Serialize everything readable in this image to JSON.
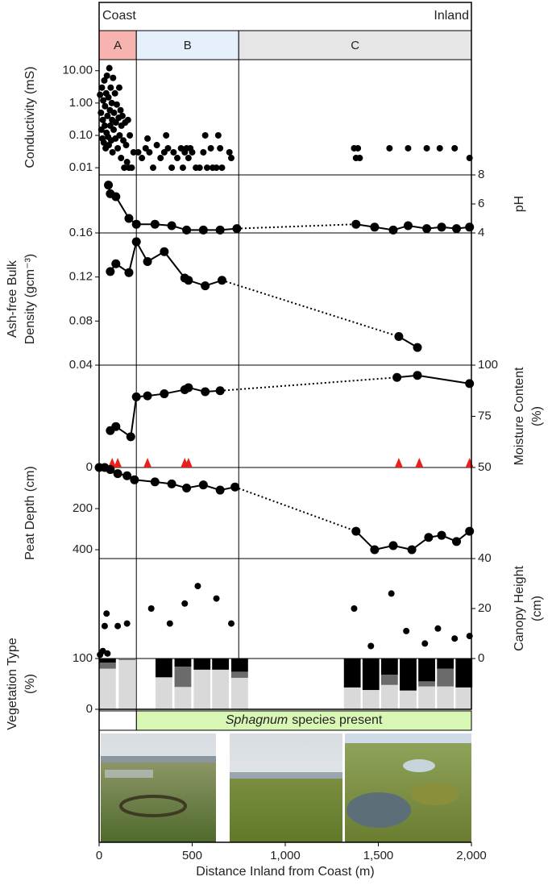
{
  "header": {
    "left": "Coast",
    "right": "Inland"
  },
  "zones": [
    {
      "label": "A",
      "range": [
        0,
        200
      ],
      "color": "#f6b3b0"
    },
    {
      "label": "B",
      "range": [
        200,
        750
      ],
      "color": "#e6f0fd"
    },
    {
      "label": "C",
      "range": [
        750,
        2000
      ],
      "color": "#e6e6e6"
    }
  ],
  "x_axis": {
    "label": "Distance Inland from Coast (m)",
    "xlim": [
      0,
      2000
    ],
    "xticks": [
      0,
      500,
      {
        "value": 1000,
        "label": "1,000"
      },
      {
        "value": 1500,
        "label": "1,500"
      },
      {
        "value": 2000,
        "label": "2,000"
      }
    ]
  },
  "chart_data": [
    {
      "type": "scatter",
      "label": [
        "Conductivity (mS)"
      ],
      "axis_side": "left",
      "log": true,
      "color": "#000",
      "ylim": [
        0.006,
        22
      ],
      "yticks": [
        {
          "value": 0.01,
          "label": "0.01"
        },
        {
          "value": 0.1,
          "label": "0.10"
        },
        {
          "value": 1,
          "label": "1.00"
        },
        {
          "value": 10,
          "label": "10.00"
        }
      ],
      "x": [
        5,
        10,
        12,
        15,
        18,
        20,
        22,
        25,
        28,
        30,
        32,
        35,
        38,
        40,
        42,
        45,
        48,
        50,
        52,
        55,
        58,
        60,
        62,
        65,
        68,
        70,
        72,
        75,
        78,
        80,
        85,
        88,
        90,
        95,
        100,
        105,
        108,
        110,
        115,
        118,
        120,
        125,
        130,
        135,
        140,
        145,
        150,
        155,
        160,
        165,
        175,
        185,
        210,
        230,
        250,
        260,
        270,
        290,
        310,
        330,
        350,
        360,
        370,
        390,
        400,
        420,
        440,
        450,
        460,
        470,
        480,
        490,
        500,
        520,
        540,
        560,
        570,
        580,
        600,
        610,
        630,
        640,
        650,
        660,
        700,
        710,
        1370,
        1380,
        1390,
        1400,
        1560,
        1660,
        1760,
        1830,
        1910,
        1990
      ],
      "values": [
        1.8,
        0.5,
        0.15,
        3,
        0.08,
        0.3,
        1.2,
        0.06,
        5,
        0.2,
        0.8,
        0.04,
        2,
        0.12,
        7,
        0.4,
        0.09,
        1.5,
        0.05,
        12,
        0.6,
        0.2,
        3,
        0.07,
        1,
        0.3,
        0.03,
        6,
        0.15,
        0.5,
        2,
        0.08,
        0.25,
        0.9,
        0.04,
        0.35,
        3,
        0.1,
        0.6,
        0.02,
        0.2,
        0.4,
        0.07,
        0.01,
        0.25,
        0.05,
        0.015,
        0.3,
        0.01,
        0.1,
        0.01,
        0.03,
        0.03,
        0.02,
        0.04,
        0.08,
        0.03,
        0.01,
        0.05,
        0.02,
        0.03,
        0.1,
        0.04,
        0.01,
        0.03,
        0.02,
        0.04,
        0.01,
        0.03,
        0.04,
        0.02,
        0.04,
        0.03,
        0.01,
        0.01,
        0.03,
        0.1,
        0.01,
        0.04,
        0.01,
        0.01,
        0.1,
        0.04,
        0.01,
        0.03,
        0.02,
        0.04,
        0.02,
        0.04,
        0.02,
        0.04,
        0.04,
        0.04,
        0.04,
        0.04,
        0.02
      ]
    },
    {
      "type": "line",
      "label": [
        "pH"
      ],
      "axis_side": "right",
      "color": "#000",
      "ylim": [
        4,
        8
      ],
      "yticks": [
        4,
        6,
        8
      ],
      "x": [
        50,
        60,
        90,
        160,
        200,
        300,
        390,
        470,
        560,
        650,
        740,
        1380,
        1480,
        1580,
        1660,
        1760,
        1840,
        1920,
        1990
      ],
      "values": [
        7.3,
        6.7,
        6.5,
        5.0,
        4.6,
        4.6,
        4.5,
        4.2,
        4.2,
        4.2,
        4.3,
        4.6,
        4.4,
        4.2,
        4.5,
        4.3,
        4.4,
        4.3,
        4.4
      ]
    },
    {
      "type": "line",
      "label": [
        "Ash-free Bulk",
        "Density (gcm⁻³)"
      ],
      "axis_side": "left",
      "color": "#000",
      "ylim": [
        0.04,
        0.16
      ],
      "yticks": [
        {
          "value": 0.04,
          "label": "0.04"
        },
        {
          "value": 0.08,
          "label": "0.08"
        },
        {
          "value": 0.12,
          "label": "0.12"
        },
        {
          "value": 0.16,
          "label": "0.16"
        }
      ],
      "x": [
        60,
        90,
        160,
        200,
        260,
        350,
        460,
        480,
        570,
        660,
        1610,
        1710
      ],
      "values": [
        0.125,
        0.132,
        0.124,
        0.152,
        0.134,
        0.143,
        0.119,
        0.117,
        0.112,
        0.117,
        0.066,
        0.056
      ]
    },
    {
      "type": "line",
      "label": [
        "Moisture Content",
        "(%)"
      ],
      "axis_side": "right",
      "color": "#000",
      "ylim": [
        50,
        100
      ],
      "yticks": [
        50,
        75,
        100
      ],
      "x": [
        60,
        90,
        170,
        200,
        260,
        350,
        460,
        480,
        570,
        650,
        1600,
        1710,
        1990
      ],
      "values": [
        68,
        70,
        65,
        84.5,
        85,
        86,
        88,
        89,
        87,
        87.5,
        94,
        95,
        91
      ],
      "sample_x": [
        70,
        100,
        260,
        460,
        480,
        1610,
        1720,
        1990
      ],
      "sample_color": "#e8211c"
    },
    {
      "type": "line",
      "label": [
        "Peat Depth (cm)"
      ],
      "axis_side": "left",
      "invert": true,
      "color": "#000",
      "ylim": [
        0,
        443
      ],
      "yticks": [
        0,
        200,
        400
      ],
      "x": [
        0,
        30,
        60,
        100,
        150,
        190,
        300,
        390,
        470,
        560,
        650,
        730,
        1380,
        1480,
        1580,
        1680,
        1770,
        1840,
        1920,
        1990
      ],
      "values": [
        0,
        0,
        10,
        30,
        40,
        60,
        70,
        80,
        100,
        85,
        110,
        95,
        310,
        400,
        380,
        400,
        340,
        330,
        360,
        310
      ]
    },
    {
      "type": "scatter",
      "label": [
        "Canopy Height",
        "(cm)"
      ],
      "axis_side": "right",
      "color": "#000",
      "ylim": [
        0,
        40
      ],
      "yticks": [
        0,
        20,
        40
      ],
      "x": [
        5,
        20,
        30,
        40,
        45,
        100,
        150,
        280,
        380,
        460,
        530,
        630,
        710,
        1370,
        1460,
        1570,
        1650,
        1750,
        1820,
        1910,
        1990
      ],
      "values": [
        1.5,
        3,
        13,
        18,
        2,
        13,
        14,
        20,
        14,
        22,
        29,
        24,
        14,
        20,
        5,
        26,
        11,
        6,
        12,
        8,
        9
      ]
    },
    {
      "type": "stacked_bar",
      "label": [
        "Vegetation Type",
        "(%)"
      ],
      "axis_side": "left",
      "ylim": [
        0,
        100
      ],
      "yticks": [
        0,
        100
      ],
      "x": [
        45,
        150,
        348,
        450,
        553,
        652,
        755,
        1360,
        1460,
        1560,
        1660,
        1760,
        1860,
        1960
      ],
      "series": [
        {
          "color": "#d9d9d9",
          "values": [
            80,
            97,
            63,
            44,
            78,
            78,
            62,
            43,
            38,
            48,
            37,
            45,
            45,
            43
          ]
        },
        {
          "color": "#6b6b6b",
          "values": [
            12,
            3,
            0,
            40,
            0,
            0,
            12,
            0,
            0,
            20,
            0,
            10,
            35,
            0
          ]
        },
        {
          "color": "#000000",
          "values": [
            8,
            0,
            37,
            16,
            22,
            22,
            26,
            57,
            62,
            32,
            63,
            45,
            20,
            57
          ]
        }
      ]
    }
  ],
  "sphagnum": {
    "range": [
      200,
      2000
    ],
    "color": "#d9f7b4",
    "label_italic": "Sphagnum",
    "label_rest": "species present"
  }
}
